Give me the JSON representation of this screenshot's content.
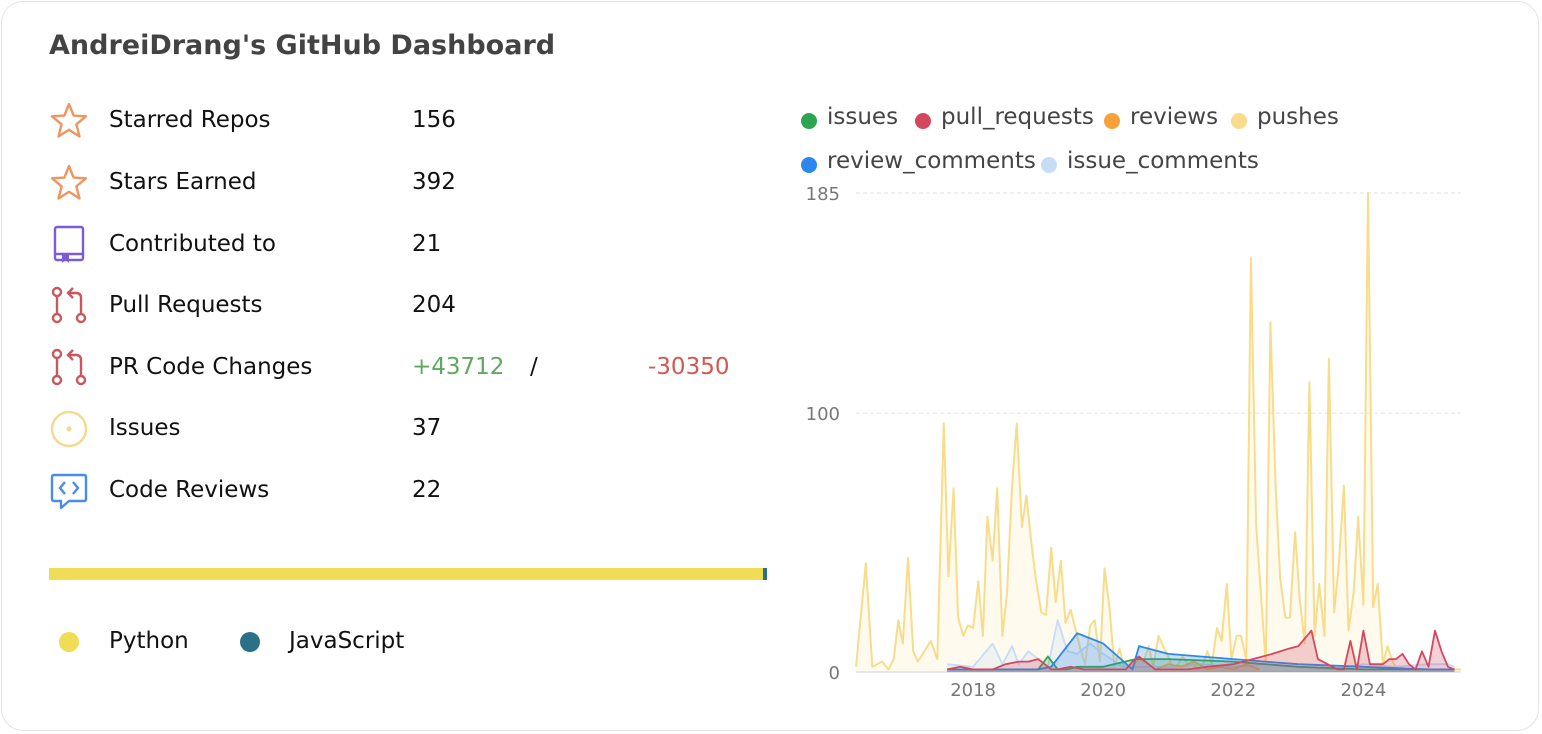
{
  "title": "AndreiDrang's GitHub Dashboard",
  "colors": {
    "star": "#f0955f",
    "contributed": "#7a5cd6",
    "pr": "#c9575c",
    "issues": "#f5d98f",
    "code_reviews": "#4a8cec",
    "additions": "#5fa85f",
    "deletions": "#d3584d"
  },
  "stats": [
    {
      "label": "Starred Repos",
      "value": "156",
      "icon": "star-icon"
    },
    {
      "label": "Stars Earned",
      "value": "392",
      "icon": "star-icon"
    },
    {
      "label": "Contributed to",
      "value": "21",
      "icon": "repo-bookmark-icon"
    },
    {
      "label": "Pull Requests",
      "value": "204",
      "icon": "pull-request-icon"
    },
    {
      "label": "PR Code Changes",
      "additions": "+43712",
      "separator": "/",
      "deletions": "-30350",
      "icon": "pull-request-icon"
    },
    {
      "label": "Issues",
      "value": "37",
      "icon": "issue-circle-icon"
    },
    {
      "label": "Code Reviews",
      "value": "22",
      "icon": "code-review-icon"
    }
  ],
  "languages": [
    {
      "name": "Python",
      "color": "#f0dc55",
      "share": 0.995
    },
    {
      "name": "JavaScript",
      "color": "#2b7089",
      "share": 0.005
    }
  ],
  "chart_data": {
    "type": "area",
    "ylim": [
      0,
      185
    ],
    "yticks": [
      "0",
      "100",
      "185"
    ],
    "xticks": [
      "2018",
      "2020",
      "2022",
      "2024"
    ],
    "xlim": [
      2016.2,
      2025.5
    ],
    "grid": true,
    "legend_position": "top",
    "series": [
      {
        "name": "issues",
        "color": "#2ea44f",
        "x": [
          2017.6,
          2018.0,
          2018.5,
          2018.8,
          2019.0,
          2019.15,
          2019.3,
          2019.45,
          2019.6,
          2020.0,
          2020.5,
          2021.0,
          2022.0,
          2023.0,
          2024.0,
          2025.0,
          2025.4
        ],
        "y": [
          1,
          1,
          1,
          1,
          1,
          6,
          1,
          1,
          2,
          2,
          5,
          5,
          4,
          2,
          1,
          1,
          1
        ]
      },
      {
        "name": "pull_requests",
        "color": "#d5475f",
        "x": [
          2017.6,
          2017.8,
          2018.0,
          2018.3,
          2018.5,
          2018.7,
          2018.85,
          2019.0,
          2019.1,
          2019.2,
          2019.3,
          2019.5,
          2019.7,
          2020.0,
          2020.2,
          2020.35,
          2020.45,
          2020.55,
          2020.8,
          2021.0,
          2021.3,
          2021.6,
          2022.0,
          2022.3,
          2022.6,
          2022.85,
          2023.0,
          2023.2,
          2023.3,
          2023.6,
          2023.7,
          2023.8,
          2023.9,
          2024.0,
          2024.1,
          2024.2,
          2024.3,
          2024.4,
          2024.5,
          2024.6,
          2024.7,
          2024.8,
          2024.9,
          2025.0,
          2025.1,
          2025.2,
          2025.3,
          2025.4
        ],
        "y": [
          1,
          2,
          1,
          1,
          3,
          4,
          4,
          5,
          3,
          1,
          1,
          2,
          1,
          1,
          1,
          1,
          4,
          6,
          1,
          1,
          1,
          2,
          3,
          5,
          7,
          9,
          10,
          16,
          5,
          1,
          1,
          12,
          1,
          16,
          3,
          3,
          3,
          5,
          5,
          7,
          3,
          1,
          8,
          2,
          16,
          8,
          2,
          1
        ]
      },
      {
        "name": "reviews",
        "color": "#f6a13a",
        "x": [
          2020.8,
          2021.0,
          2021.2,
          2021.4,
          2021.6,
          2021.8,
          2022.0,
          2022.2,
          2022.4
        ],
        "y": [
          1,
          3,
          2,
          4,
          1,
          2,
          1,
          3,
          1
        ]
      },
      {
        "name": "pushes",
        "color": "#f9dc8a",
        "x": [
          2016.2,
          2016.35,
          2016.45,
          2016.6,
          2016.7,
          2016.78,
          2016.85,
          2016.92,
          2017.0,
          2017.08,
          2017.15,
          2017.25,
          2017.35,
          2017.45,
          2017.55,
          2017.62,
          2017.7,
          2017.77,
          2017.85,
          2017.92,
          2018.0,
          2018.08,
          2018.15,
          2018.22,
          2018.3,
          2018.37,
          2018.45,
          2018.52,
          2018.6,
          2018.67,
          2018.75,
          2018.82,
          2018.9,
          2018.97,
          2019.05,
          2019.12,
          2019.2,
          2019.27,
          2019.35,
          2019.42,
          2019.5,
          2019.57,
          2019.65,
          2019.72,
          2019.8,
          2019.87,
          2019.95,
          2020.02,
          2020.1,
          2020.17,
          2020.25,
          2020.32,
          2020.4,
          2020.47,
          2020.55,
          2020.62,
          2020.7,
          2020.77,
          2020.85,
          2020.92,
          2021.0,
          2021.07,
          2021.15,
          2021.22,
          2021.3,
          2021.37,
          2021.45,
          2021.52,
          2021.6,
          2021.67,
          2021.75,
          2021.82,
          2021.9,
          2021.97,
          2022.05,
          2022.12,
          2022.2,
          2022.27,
          2022.35,
          2022.42,
          2022.5,
          2022.57,
          2022.65,
          2022.72,
          2022.8,
          2022.87,
          2022.95,
          2023.02,
          2023.1,
          2023.17,
          2023.25,
          2023.32,
          2023.4,
          2023.47,
          2023.55,
          2023.62,
          2023.7,
          2023.77,
          2023.85,
          2023.92,
          2024.0,
          2024.07,
          2024.15,
          2024.22,
          2024.3,
          2024.37,
          2024.45,
          2024.52,
          2024.6,
          2024.67,
          2024.75,
          2024.82,
          2024.9,
          2024.97,
          2025.05,
          2025.12,
          2025.2,
          2025.27,
          2025.35,
          2025.42,
          2025.5
        ],
        "y": [
          2,
          42,
          2,
          4,
          1,
          5,
          20,
          11,
          44,
          8,
          4,
          8,
          12,
          5,
          96,
          37,
          71,
          21,
          14,
          18,
          17,
          35,
          14,
          60,
          43,
          71,
          14,
          30,
          72,
          96,
          56,
          68,
          49,
          35,
          23,
          22,
          48,
          27,
          43,
          19,
          24,
          17,
          9,
          3,
          18,
          20,
          4,
          40,
          24,
          2,
          9,
          2,
          2,
          3,
          5,
          4,
          10,
          2,
          14,
          10,
          6,
          1,
          3,
          6,
          3,
          4,
          1,
          2,
          8,
          3,
          17,
          12,
          34,
          5,
          14,
          14,
          5,
          160,
          57,
          32,
          3,
          135,
          72,
          36,
          21,
          21,
          54,
          28,
          11,
          112,
          14,
          34,
          14,
          121,
          23,
          41,
          72,
          16,
          31,
          60,
          26,
          187,
          25,
          34,
          3,
          10,
          4,
          1,
          1,
          1,
          1,
          1,
          1,
          1,
          1,
          1,
          1,
          1,
          1,
          1,
          1
        ]
      },
      {
        "name": "review_comments",
        "color": "#2c87ef",
        "x": [
          2017.6,
          2018.0,
          2018.5,
          2019.0,
          2019.2,
          2019.6,
          2020.0,
          2020.45,
          2020.55,
          2021.0,
          2022.0,
          2023.0,
          2024.0,
          2025.0,
          2025.4
        ],
        "y": [
          1,
          1,
          1,
          1,
          2,
          15,
          11,
          1,
          10,
          7,
          5,
          3,
          2,
          1,
          1
        ]
      },
      {
        "name": "issue_comments",
        "color": "#c6dcf7",
        "x": [
          2017.6,
          2018.0,
          2018.3,
          2018.45,
          2018.6,
          2018.7,
          2018.85,
          2019.0,
          2019.15,
          2019.3,
          2019.45,
          2019.6,
          2019.8,
          2020.0,
          2020.3,
          2020.6,
          2021.0,
          2021.5,
          2022.0,
          2022.5,
          2023.0,
          2023.5,
          2024.0,
          2024.5,
          2025.0,
          2025.3,
          2025.4
        ],
        "y": [
          3,
          2,
          11,
          3,
          10,
          3,
          8,
          5,
          2,
          20,
          8,
          7,
          11,
          7,
          2,
          2,
          2,
          3,
          2,
          3,
          2,
          1,
          3,
          2,
          3,
          3,
          2
        ]
      }
    ]
  }
}
